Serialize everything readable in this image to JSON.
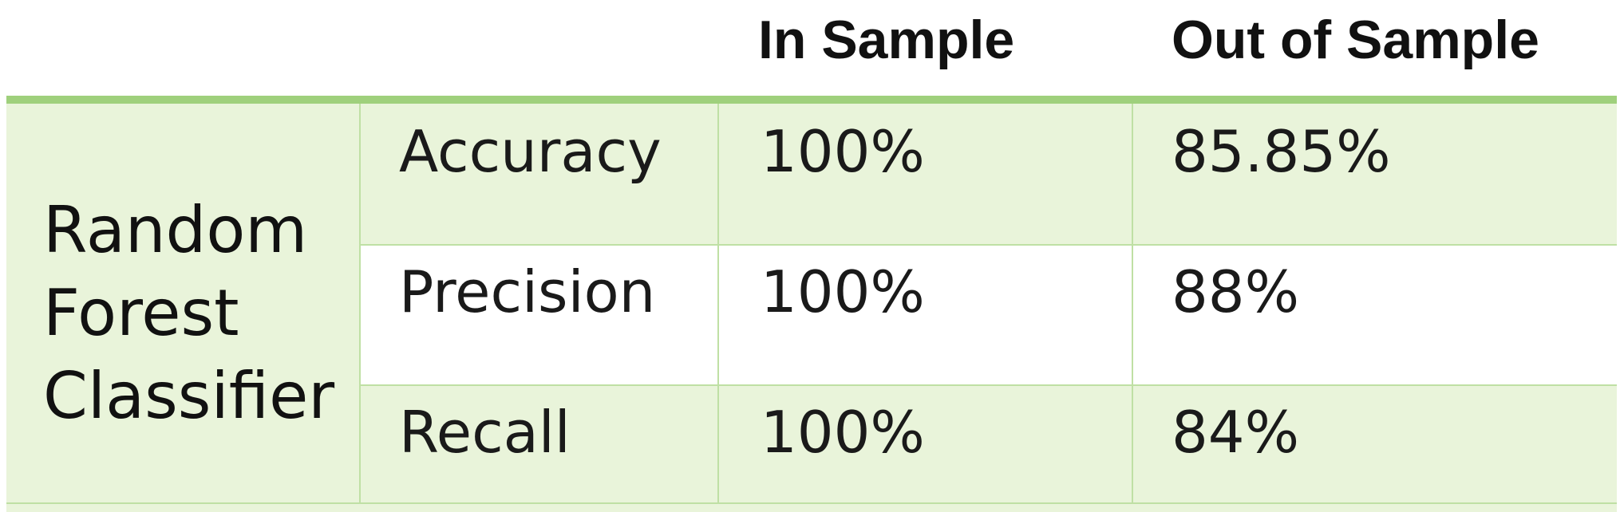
{
  "columns": {
    "in_sample": "In Sample",
    "out_of_sample": "Out of Sample"
  },
  "group": {
    "label": "Random Forest Classifier"
  },
  "rows": [
    {
      "metric": "Accuracy",
      "in_sample": "100%",
      "out_of_sample": "85.85%"
    },
    {
      "metric": "Precision",
      "in_sample": "100%",
      "out_of_sample": "88%"
    },
    {
      "metric": "Recall",
      "in_sample": "100%",
      "out_of_sample": "84%"
    }
  ],
  "colors": {
    "header_rule": "#9fd07c",
    "band_fill": "#e9f4da",
    "grid_line": "#bfe0a4"
  }
}
